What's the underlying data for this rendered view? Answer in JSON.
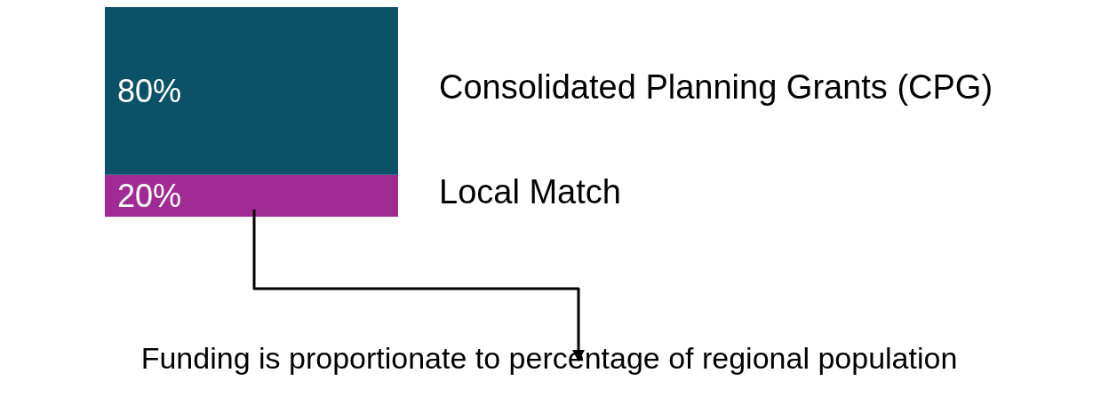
{
  "chart_data": {
    "type": "bar",
    "stacked": true,
    "categories": [
      null
    ],
    "series": [
      {
        "name": "Local Match",
        "color": "#a02b93",
        "values": [
          20
        ],
        "value_labels": [
          "20%"
        ]
      },
      {
        "name": "Consolidated Planning Grants (CPG)",
        "color": "#0b5269",
        "values": [
          80
        ],
        "value_labels": [
          "80%"
        ]
      }
    ],
    "annotations": [
      "Funding is proportionate to percentage of regional population"
    ]
  }
}
